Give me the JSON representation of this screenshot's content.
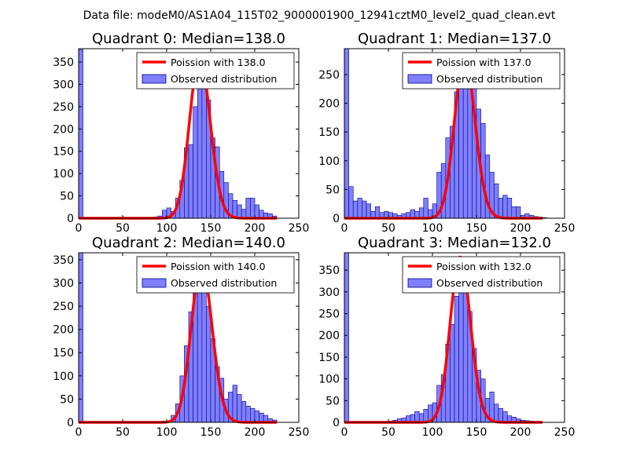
{
  "suptitle": "Data file: modeM0/AS1A04_115T02_9000001900_12941cztM0_level2_quad_clean.evt",
  "colors": {
    "poisson": "#ff0000",
    "hist_fill": "#7f7fff",
    "hist_edge": "#00008b"
  },
  "chart_data": [
    {
      "type": "bar",
      "title": "Quadrant 0: Median=138.0",
      "legend": [
        "Poission with 138.0",
        "Observed distribution"
      ],
      "legend_loc": "upper right",
      "median": 138.0,
      "xlim": [
        0,
        250
      ],
      "ylim": [
        0,
        380
      ],
      "xticks": [
        0,
        50,
        100,
        150,
        200,
        250
      ],
      "yticks": [
        0,
        50,
        100,
        150,
        200,
        250,
        300,
        350
      ],
      "bin_width": 5,
      "bin_starts": [
        0,
        85,
        90,
        95,
        100,
        105,
        110,
        115,
        120,
        125,
        130,
        135,
        140,
        145,
        150,
        155,
        160,
        165,
        170,
        175,
        180,
        185,
        190,
        195,
        200,
        205,
        210,
        215,
        220
      ],
      "counts": [
        378,
        3,
        5,
        18,
        23,
        15,
        45,
        85,
        158,
        165,
        250,
        370,
        345,
        265,
        180,
        160,
        105,
        80,
        55,
        40,
        30,
        20,
        45,
        45,
        30,
        18,
        12,
        10,
        5
      ],
      "poisson_peak": 360
    },
    {
      "type": "bar",
      "title": "Quadrant 1: Median=137.0",
      "legend": [
        "Poission with 137.0",
        "Observed distribution"
      ],
      "legend_loc": "upper right",
      "median": 137.0,
      "xlim": [
        0,
        250
      ],
      "ylim": [
        0,
        295
      ],
      "xticks": [
        0,
        50,
        100,
        150,
        200,
        250
      ],
      "yticks": [
        0,
        50,
        100,
        150,
        200,
        250
      ],
      "bin_width": 5,
      "bin_starts": [
        0,
        5,
        10,
        15,
        20,
        25,
        30,
        35,
        40,
        45,
        50,
        55,
        60,
        65,
        70,
        75,
        80,
        85,
        90,
        95,
        100,
        105,
        110,
        115,
        120,
        125,
        130,
        135,
        140,
        145,
        150,
        155,
        160,
        165,
        170,
        175,
        180,
        185,
        190,
        195,
        200,
        205,
        210,
        215,
        220,
        225
      ],
      "counts": [
        295,
        55,
        30,
        35,
        30,
        25,
        12,
        20,
        10,
        12,
        10,
        8,
        5,
        8,
        10,
        15,
        12,
        18,
        35,
        15,
        25,
        80,
        95,
        140,
        160,
        220,
        250,
        255,
        260,
        230,
        190,
        165,
        110,
        80,
        60,
        35,
        40,
        35,
        20,
        20,
        5,
        8,
        5,
        3,
        2,
        1
      ],
      "poisson_peak": 280
    },
    {
      "type": "bar",
      "title": "Quadrant 2: Median=140.0",
      "legend": [
        "Poission with 140.0",
        "Observed distribution"
      ],
      "legend_loc": "upper right",
      "median": 140.0,
      "xlim": [
        0,
        250
      ],
      "ylim": [
        0,
        365
      ],
      "xticks": [
        0,
        50,
        100,
        150,
        200,
        250
      ],
      "yticks": [
        0,
        50,
        100,
        150,
        200,
        250,
        300,
        350
      ],
      "bin_width": 5,
      "bin_starts": [
        0,
        105,
        110,
        115,
        120,
        125,
        130,
        135,
        140,
        145,
        150,
        155,
        160,
        165,
        170,
        175,
        180,
        185,
        190,
        195,
        200,
        205,
        210,
        215,
        220
      ],
      "counts": [
        365,
        15,
        40,
        100,
        165,
        238,
        295,
        345,
        330,
        250,
        180,
        120,
        95,
        50,
        65,
        80,
        60,
        45,
        35,
        30,
        25,
        20,
        15,
        8,
        5
      ],
      "poisson_peak": 340
    },
    {
      "type": "bar",
      "title": "Quadrant 3: Median=132.0",
      "legend": [
        "Poission with 132.0",
        "Observed distribution"
      ],
      "legend_loc": "upper right",
      "median": 132.0,
      "xlim": [
        0,
        250
      ],
      "ylim": [
        0,
        390
      ],
      "xticks": [
        0,
        50,
        100,
        150,
        200,
        250
      ],
      "yticks": [
        0,
        50,
        100,
        150,
        200,
        250,
        300,
        350
      ],
      "bin_width": 5,
      "bin_starts": [
        0,
        50,
        55,
        60,
        65,
        70,
        75,
        80,
        85,
        90,
        95,
        100,
        105,
        110,
        115,
        120,
        125,
        130,
        135,
        140,
        145,
        150,
        155,
        160,
        165,
        170,
        175,
        180,
        185,
        190,
        195,
        200,
        205,
        210,
        215
      ],
      "counts": [
        390,
        3,
        5,
        8,
        10,
        15,
        18,
        25,
        20,
        30,
        40,
        45,
        85,
        110,
        180,
        225,
        290,
        345,
        330,
        255,
        170,
        120,
        100,
        55,
        70,
        42,
        32,
        25,
        15,
        12,
        8,
        5,
        4,
        3,
        2
      ],
      "poisson_peak": 380
    }
  ]
}
